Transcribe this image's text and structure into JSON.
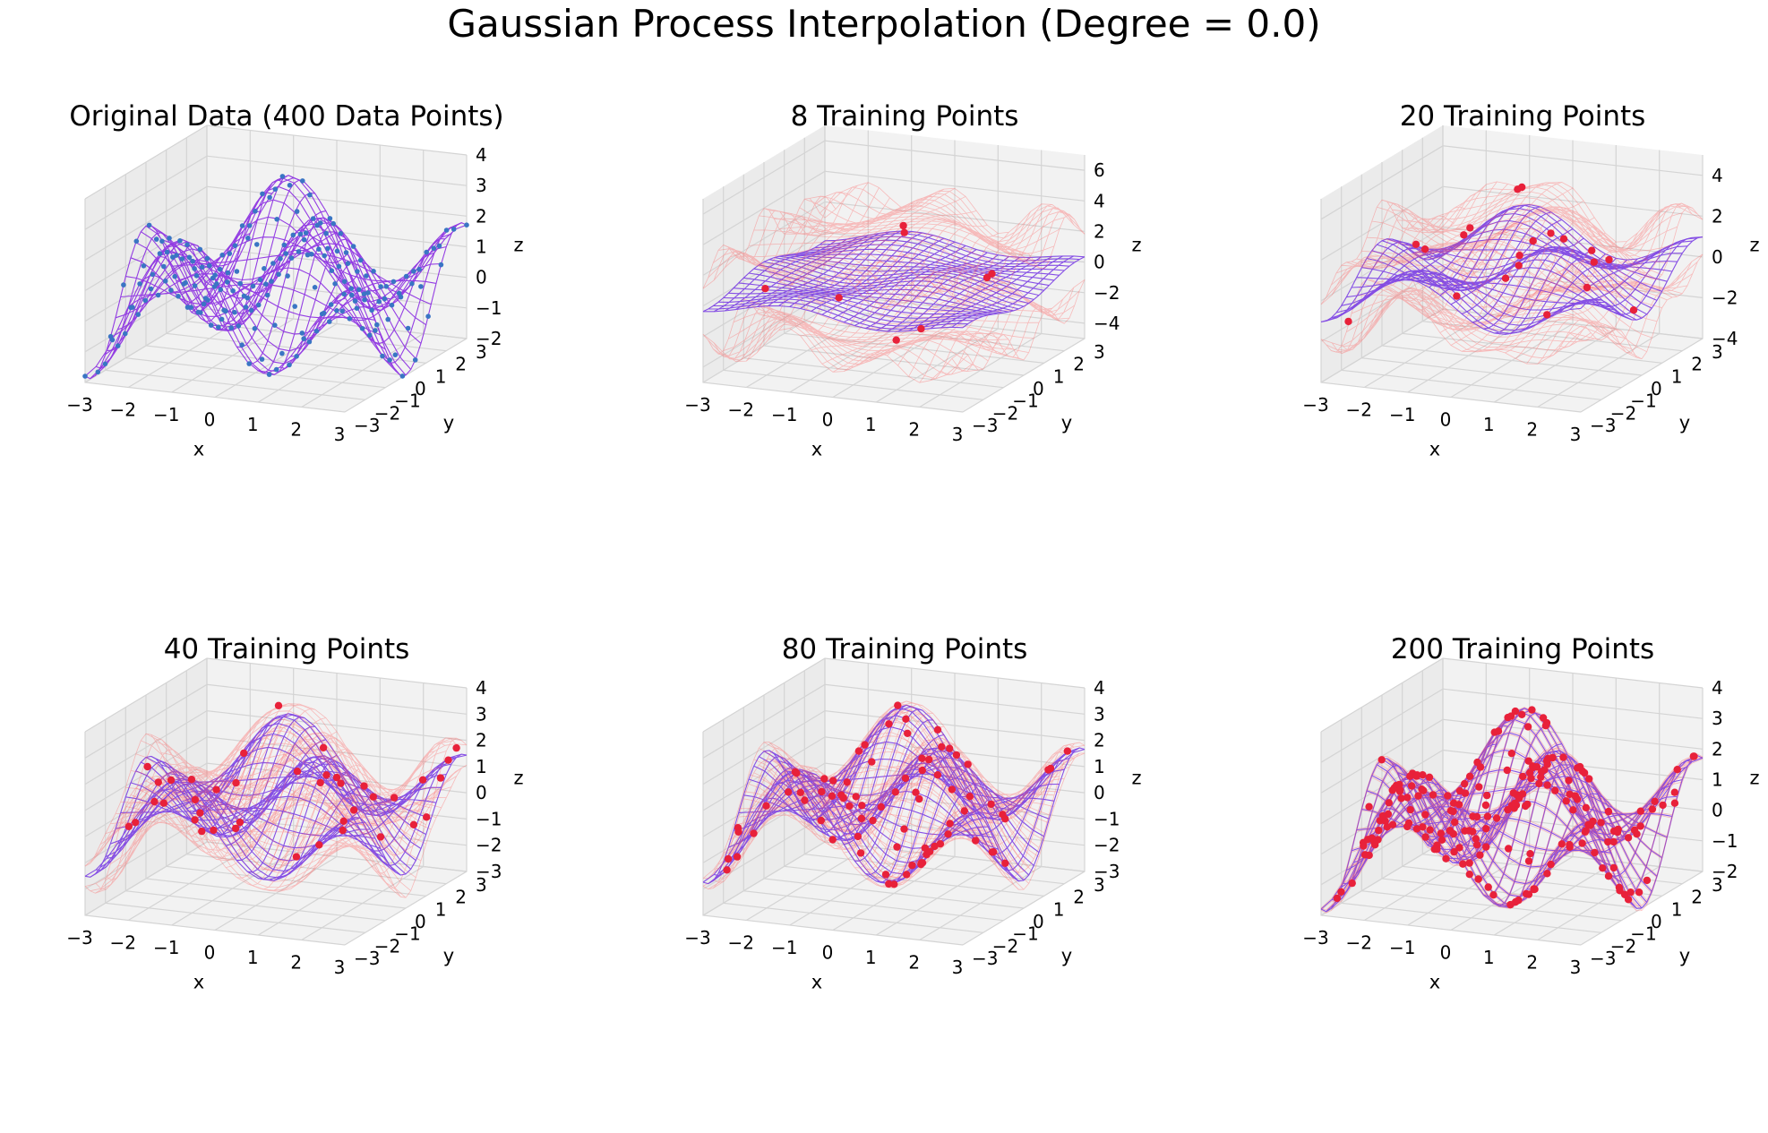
{
  "figure": {
    "suptitle": "Gaussian Process Interpolation (Degree =  0.0)",
    "colors": {
      "data_surface": "#8a2be2",
      "data_points": "#3a75c4",
      "mean_surface": "#7b3fe4",
      "band_surface": "#ff5555",
      "training_points": "#e8213a",
      "pane": "#f2f2f2",
      "grid": "#d4d4d4"
    }
  },
  "chart_data": [
    {
      "type": "surface3d",
      "title": "Original Data (400 Data Points)",
      "xlabel": "x",
      "ylabel": "y",
      "zlabel": "z",
      "xticks": [
        "−3",
        "−2",
        "−1",
        "0",
        "1",
        "2",
        "3"
      ],
      "yticks": [
        "−3",
        "−2",
        "−1",
        "0",
        "1",
        "2",
        "3"
      ],
      "zticks": [
        "−2",
        "−1",
        "0",
        "1",
        "2",
        "3",
        "4"
      ],
      "xlim": [
        -3,
        3
      ],
      "ylim": [
        -3,
        3
      ],
      "zlim": [
        -2,
        4
      ],
      "grid_points": 400,
      "training_points": 0,
      "show_band": false
    },
    {
      "type": "surface3d",
      "title": "8 Training Points",
      "xlabel": "x",
      "ylabel": "y",
      "zlabel": "z",
      "xticks": [
        "−3",
        "−2",
        "−1",
        "0",
        "1",
        "2",
        "3"
      ],
      "yticks": [
        "−3",
        "−2",
        "−1",
        "0",
        "1",
        "2",
        "3"
      ],
      "zticks": [
        "−4",
        "−2",
        "0",
        "2",
        "4",
        "6"
      ],
      "xlim": [
        -3,
        3
      ],
      "ylim": [
        -3,
        3
      ],
      "zlim": [
        -5,
        7
      ],
      "training_points": 8,
      "fit_fraction": 0.25,
      "band_width": 3.5,
      "show_band": true
    },
    {
      "type": "surface3d",
      "title": "20 Training Points",
      "xlabel": "x",
      "ylabel": "y",
      "zlabel": "z",
      "xticks": [
        "−3",
        "−2",
        "−1",
        "0",
        "1",
        "2",
        "3"
      ],
      "yticks": [
        "−3",
        "−2",
        "−1",
        "0",
        "1",
        "2",
        "3"
      ],
      "zticks": [
        "−4",
        "−2",
        "0",
        "2",
        "4"
      ],
      "xlim": [
        -3,
        3
      ],
      "ylim": [
        -3,
        3
      ],
      "zlim": [
        -4,
        5
      ],
      "training_points": 20,
      "fit_fraction": 0.6,
      "band_width": 2.0,
      "show_band": true
    },
    {
      "type": "surface3d",
      "title": "40 Training Points",
      "xlabel": "x",
      "ylabel": "y",
      "zlabel": "z",
      "xticks": [
        "−3",
        "−2",
        "−1",
        "0",
        "1",
        "2",
        "3"
      ],
      "yticks": [
        "−3",
        "−2",
        "−1",
        "0",
        "1",
        "2",
        "3"
      ],
      "zticks": [
        "−3",
        "−2",
        "−1",
        "0",
        "1",
        "2",
        "3",
        "4"
      ],
      "xlim": [
        -3,
        3
      ],
      "ylim": [
        -3,
        3
      ],
      "zlim": [
        -3,
        4
      ],
      "training_points": 40,
      "fit_fraction": 0.85,
      "band_width": 0.9,
      "show_band": true
    },
    {
      "type": "surface3d",
      "title": "80 Training Points",
      "xlabel": "x",
      "ylabel": "y",
      "zlabel": "z",
      "xticks": [
        "−3",
        "−2",
        "−1",
        "0",
        "1",
        "2",
        "3"
      ],
      "yticks": [
        "−3",
        "−2",
        "−1",
        "0",
        "1",
        "2",
        "3"
      ],
      "zticks": [
        "−3",
        "−2",
        "−1",
        "0",
        "1",
        "2",
        "3",
        "4"
      ],
      "xlim": [
        -3,
        3
      ],
      "ylim": [
        -3,
        3
      ],
      "zlim": [
        -3,
        4
      ],
      "training_points": 80,
      "fit_fraction": 0.97,
      "band_width": 0.35,
      "show_band": true
    },
    {
      "type": "surface3d",
      "title": "200 Training Points",
      "xlabel": "x",
      "ylabel": "y",
      "zlabel": "z",
      "xticks": [
        "−3",
        "−2",
        "−1",
        "0",
        "1",
        "2",
        "3"
      ],
      "yticks": [
        "−3",
        "−2",
        "−1",
        "0",
        "1",
        "2",
        "3"
      ],
      "zticks": [
        "−2",
        "−1",
        "0",
        "1",
        "2",
        "3",
        "4"
      ],
      "xlim": [
        -3,
        3
      ],
      "ylim": [
        -3,
        3
      ],
      "zlim": [
        -2,
        4
      ],
      "training_points": 200,
      "fit_fraction": 1.0,
      "band_width": 0.08,
      "show_band": true
    }
  ]
}
